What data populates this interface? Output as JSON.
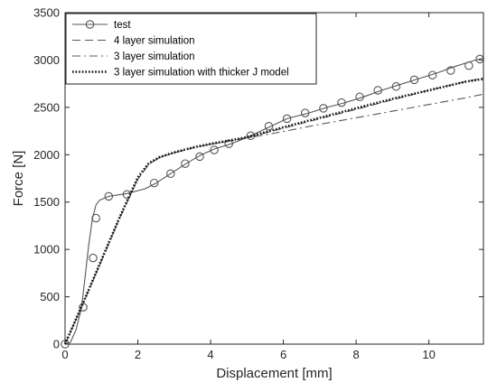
{
  "chart_data": {
    "type": "line",
    "title": "",
    "xlabel": "Displacement [mm]",
    "ylabel": "Force [N]",
    "xlim": [
      0,
      11.5
    ],
    "ylim": [
      0,
      3500
    ],
    "xticks": [
      0,
      2,
      4,
      6,
      8,
      10
    ],
    "yticks": [
      0,
      500,
      1000,
      1500,
      2000,
      2500,
      3000,
      3500
    ],
    "grid": false,
    "legend_position": "top-left",
    "series": [
      {
        "name": "test",
        "style": "solid-circle",
        "color": "#555555",
        "x": [
          0,
          0.15,
          0.3,
          0.45,
          0.55,
          0.65,
          0.75,
          0.85,
          0.95,
          1.2,
          1.7,
          2.2,
          2.5,
          2.9,
          3.3,
          3.7,
          4.1,
          4.6,
          5.1,
          5.6,
          6.1,
          6.7,
          7.2,
          7.7,
          8.2,
          8.7,
          9.2,
          9.7,
          10.2,
          10.7,
          11.2,
          11.5
        ],
        "y": [
          0,
          20,
          150,
          380,
          700,
          1050,
          1320,
          1470,
          1520,
          1560,
          1590,
          1640,
          1700,
          1800,
          1900,
          1990,
          2060,
          2120,
          2200,
          2290,
          2380,
          2440,
          2500,
          2550,
          2610,
          2680,
          2740,
          2800,
          2860,
          2930,
          2990,
          3020
        ],
        "markers": [
          [
            0,
            0
          ],
          [
            0.5,
            390
          ],
          [
            0.77,
            910
          ],
          [
            0.85,
            1330
          ],
          [
            1.2,
            1560
          ],
          [
            1.7,
            1580
          ],
          [
            2.45,
            1700
          ],
          [
            2.9,
            1800
          ],
          [
            3.3,
            1905
          ],
          [
            3.7,
            1980
          ],
          [
            4.1,
            2050
          ],
          [
            4.5,
            2115
          ],
          [
            5.1,
            2200
          ],
          [
            5.6,
            2300
          ],
          [
            6.1,
            2380
          ],
          [
            6.6,
            2440
          ],
          [
            7.1,
            2490
          ],
          [
            7.6,
            2550
          ],
          [
            8.1,
            2610
          ],
          [
            8.6,
            2680
          ],
          [
            9.1,
            2720
          ],
          [
            9.6,
            2790
          ],
          [
            10.1,
            2840
          ],
          [
            10.6,
            2890
          ],
          [
            11.1,
            2940
          ],
          [
            11.4,
            3010
          ]
        ]
      },
      {
        "name": "4 layer simulation",
        "style": "dashed",
        "color": "#555555",
        "x": [
          0,
          0.5,
          1.0,
          1.5,
          2.0,
          2.3,
          2.6,
          3.0,
          3.5,
          4.0,
          4.5,
          5.0,
          6.0,
          7.0,
          8.0,
          9.0,
          10.0,
          11.0,
          11.5
        ],
        "y": [
          0,
          430,
          880,
          1330,
          1740,
          1900,
          1970,
          2020,
          2070,
          2110,
          2145,
          2180,
          2280,
          2380,
          2480,
          2580,
          2680,
          2770,
          2810
        ]
      },
      {
        "name": "3 layer simulation",
        "style": "dashdot",
        "color": "#555555",
        "x": [
          0,
          0.5,
          1.0,
          1.5,
          2.0,
          2.3,
          2.6,
          3.0,
          3.5,
          4.0,
          4.5,
          5.0,
          6.0,
          7.0,
          8.0,
          9.0,
          10.0,
          11.0,
          11.5
        ],
        "y": [
          0,
          430,
          880,
          1330,
          1740,
          1900,
          1970,
          2020,
          2070,
          2110,
          2140,
          2175,
          2245,
          2320,
          2390,
          2460,
          2530,
          2600,
          2640
        ]
      },
      {
        "name": "3 layer simulation with thicker J model",
        "style": "dotted",
        "color": "#111111",
        "x": [
          0,
          0.5,
          1.0,
          1.5,
          2.0,
          2.3,
          2.6,
          3.0,
          3.5,
          4.0,
          4.5,
          5.0,
          6.0,
          7.0,
          8.0,
          9.0,
          10.0,
          11.0,
          11.5
        ],
        "y": [
          0,
          440,
          890,
          1340,
          1760,
          1910,
          1975,
          2025,
          2075,
          2115,
          2150,
          2185,
          2290,
          2390,
          2490,
          2590,
          2680,
          2770,
          2800
        ]
      }
    ]
  }
}
